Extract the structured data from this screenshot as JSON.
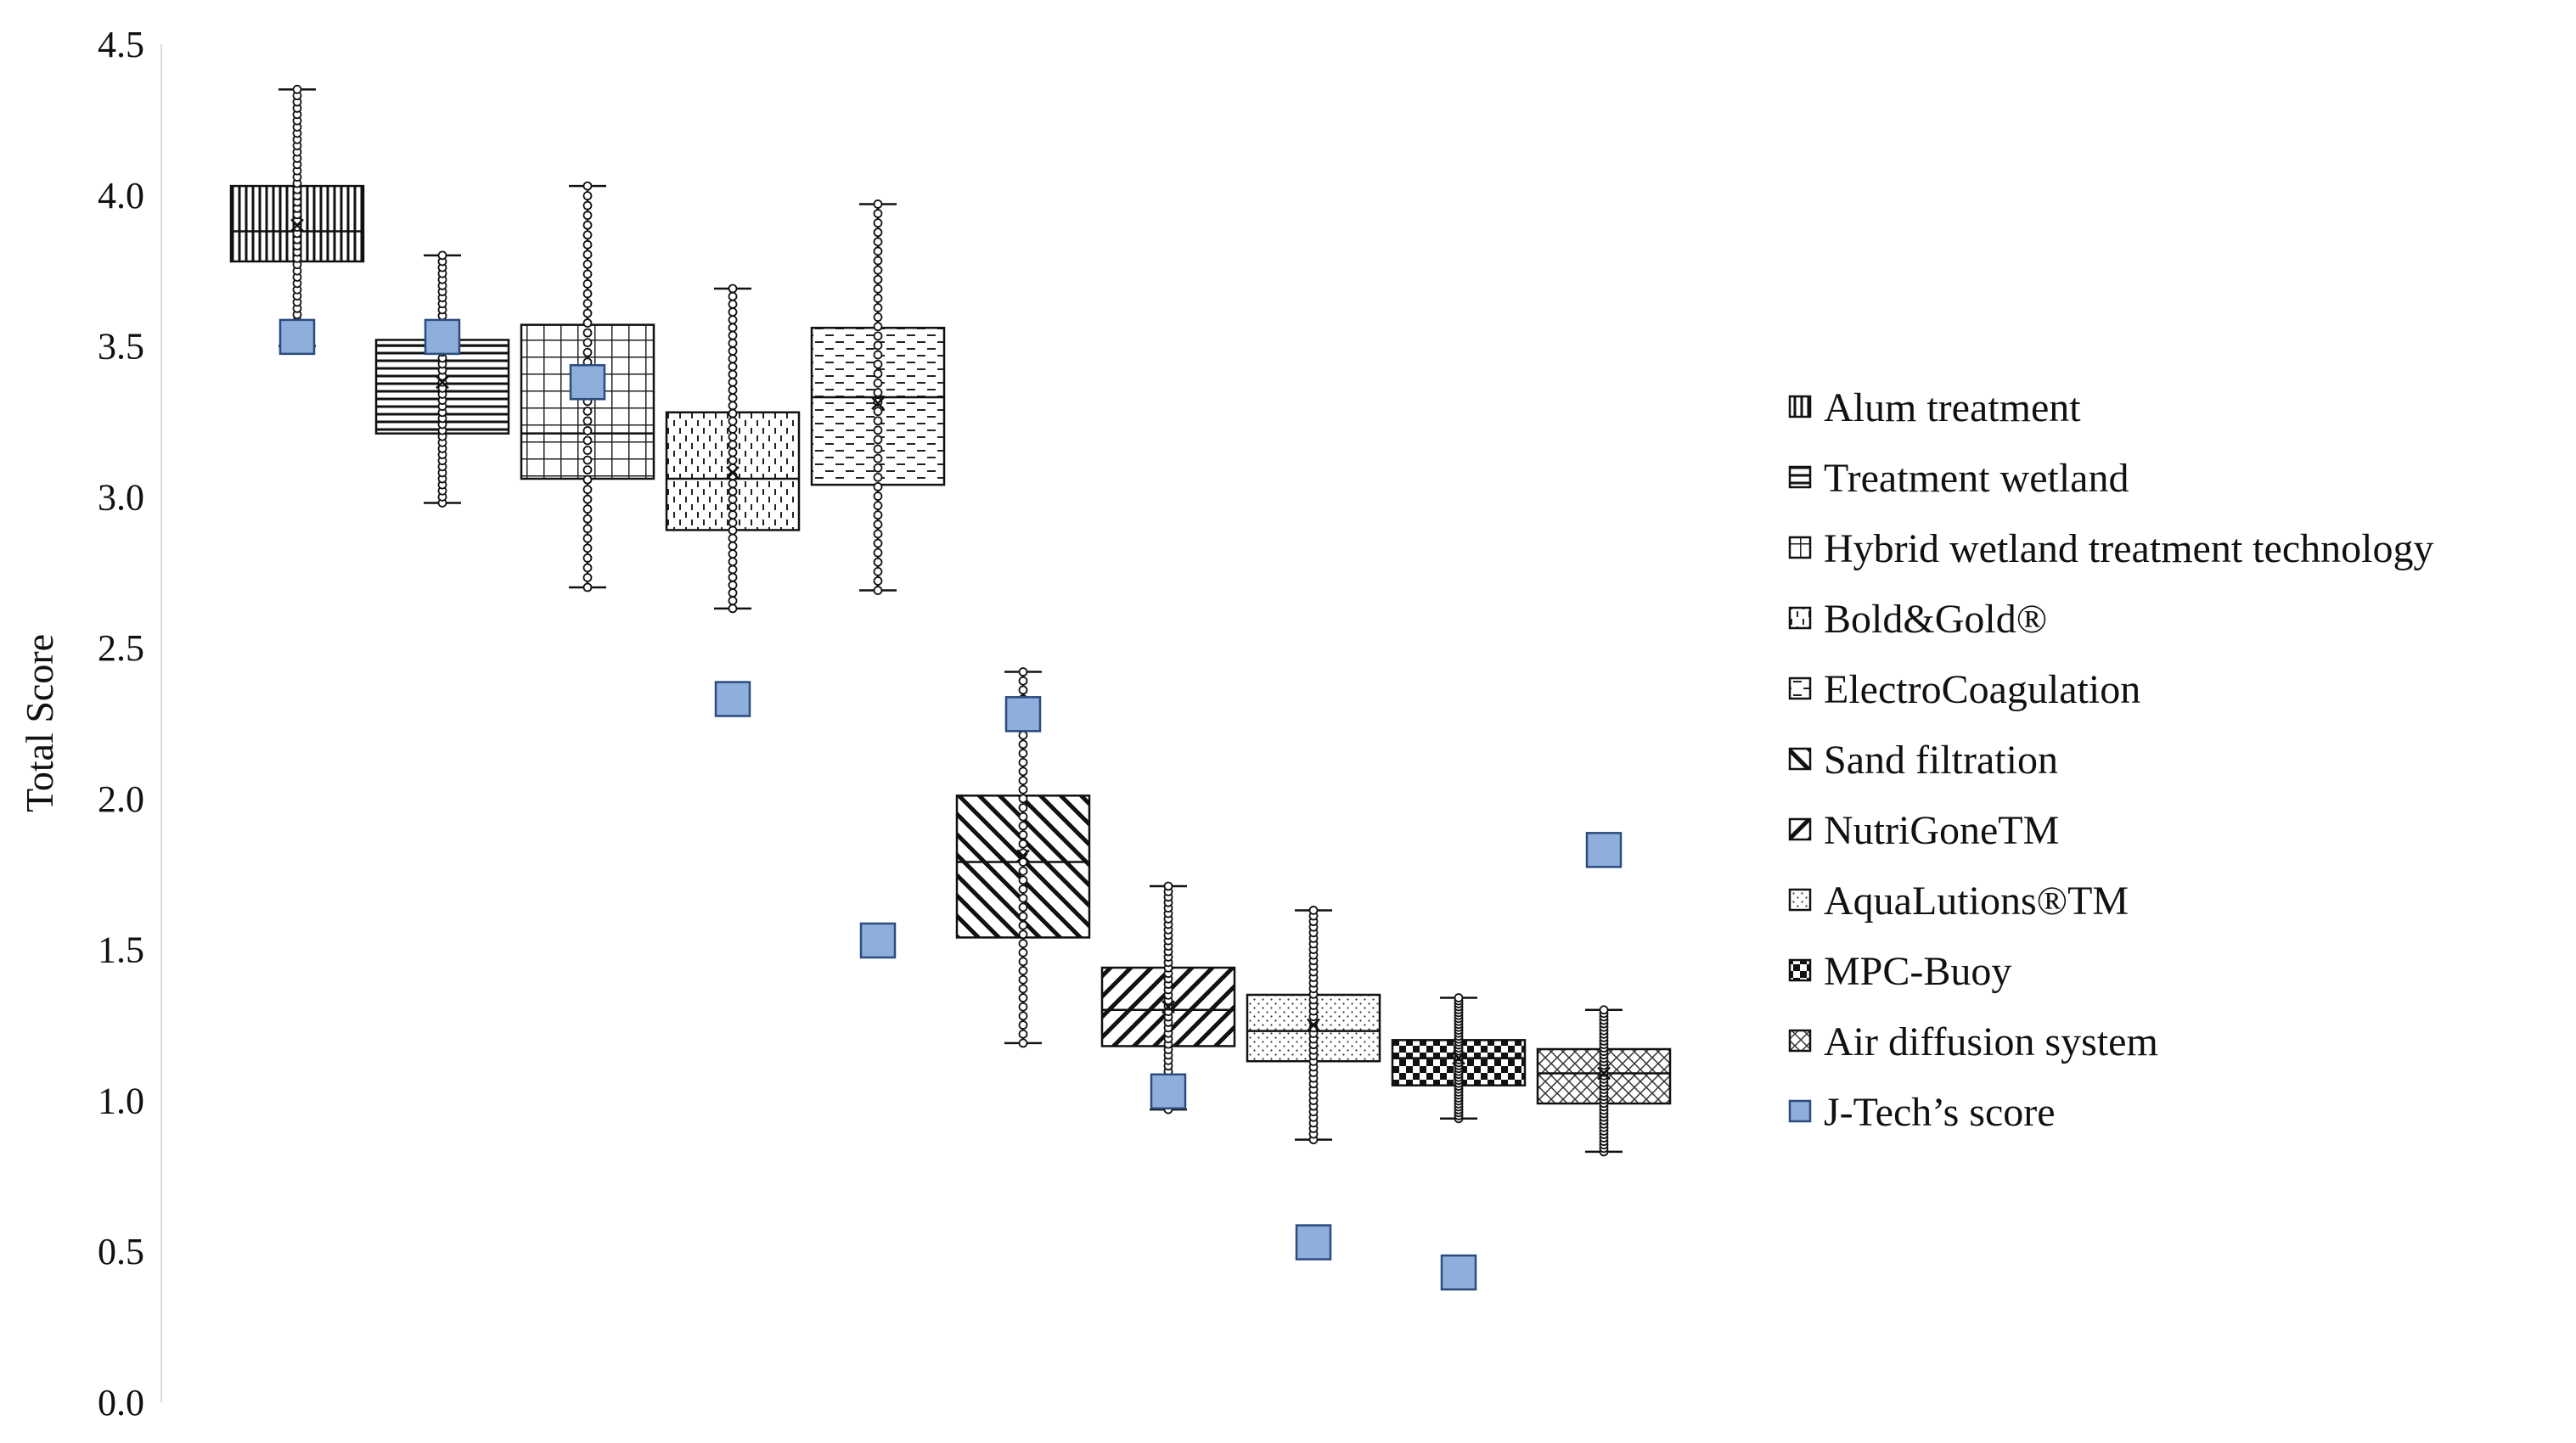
{
  "chart_data": {
    "type": "box",
    "ylabel": "Total Score",
    "ylim": [
      0,
      4.5
    ],
    "yticks": [
      "0.0",
      "0.5",
      "1.0",
      "1.5",
      "2.0",
      "2.5",
      "3.0",
      "3.5",
      "4.0",
      "4.5"
    ],
    "grid": false,
    "legend_position": "right",
    "series": [
      {
        "name": "Alum treatment",
        "pattern": "vertical",
        "min": 3.5,
        "q1": 3.78,
        "median": 3.88,
        "q3": 4.03,
        "max": 4.35,
        "mean": 3.9,
        "jtech": 3.53
      },
      {
        "name": "Treatment wetland",
        "pattern": "horizontal",
        "min": 2.98,
        "q1": 3.21,
        "median": 3.5,
        "q3": 3.52,
        "max": 3.8,
        "mean": 3.38,
        "jtech": 3.53
      },
      {
        "name": "Hybrid wetland treatment technology",
        "pattern": "grid",
        "min": 2.7,
        "q1": 3.06,
        "median": 3.21,
        "q3": 3.57,
        "max": 4.03,
        "mean": 3.35,
        "jtech": 3.38
      },
      {
        "name": "Bold&Gold®",
        "pattern": "dashed-vertical",
        "min": 2.63,
        "q1": 2.89,
        "median": 3.06,
        "q3": 3.28,
        "max": 3.69,
        "mean": 3.08,
        "jtech": 2.33
      },
      {
        "name": "ElectroCoagulation",
        "pattern": "dashed-horizontal",
        "min": 2.69,
        "q1": 3.04,
        "median": 3.33,
        "q3": 3.56,
        "max": 3.97,
        "mean": 3.31,
        "jtech": 1.53
      },
      {
        "name": "Sand filtration",
        "pattern": "wide-diagonal-down",
        "min": 1.19,
        "q1": 1.54,
        "median": 1.79,
        "q3": 2.01,
        "max": 2.42,
        "mean": 1.81,
        "jtech": 2.28
      },
      {
        "name": "NutriGoneTM",
        "pattern": "wide-diagonal-up",
        "min": 0.97,
        "q1": 1.18,
        "median": 1.3,
        "q3": 1.44,
        "max": 1.71,
        "mean": 1.31,
        "jtech": 1.03
      },
      {
        "name": "AquaLutions®TM",
        "pattern": "dots",
        "min": 0.87,
        "q1": 1.13,
        "median": 1.23,
        "q3": 1.35,
        "max": 1.63,
        "mean": 1.25,
        "jtech": 0.53
      },
      {
        "name": "MPC-Buoy",
        "pattern": "checker",
        "min": 0.94,
        "q1": 1.05,
        "median": 1.14,
        "q3": 1.2,
        "max": 1.34,
        "mean": 1.14,
        "jtech": 0.43
      },
      {
        "name": "Air diffusion system",
        "pattern": "crosshatch",
        "min": 0.83,
        "q1": 0.99,
        "median": 1.09,
        "q3": 1.17,
        "max": 1.3,
        "mean": 1.09,
        "jtech": 1.83
      }
    ],
    "marker_series": {
      "name": "J-Tech’s score",
      "color": "#8eaedb",
      "stroke": "#2b4c7e"
    }
  }
}
